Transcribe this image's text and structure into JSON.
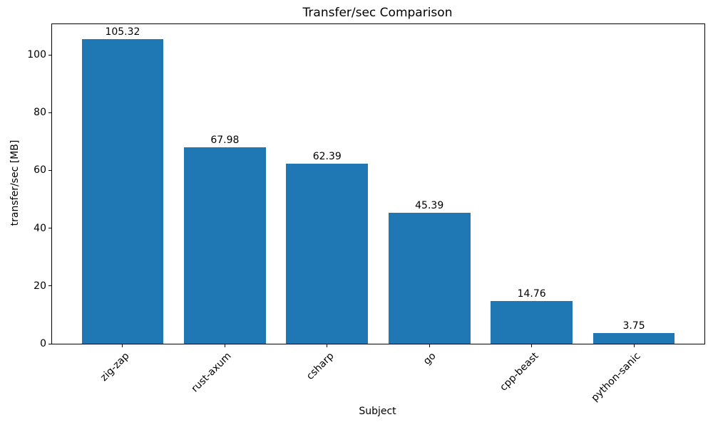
{
  "chart_data": {
    "type": "bar",
    "title": "Transfer/sec Comparison",
    "xlabel": "Subject",
    "ylabel": "transfer/sec [MB]",
    "categories": [
      "zig-zap",
      "rust-axum",
      "csharp",
      "go",
      "cpp-beast",
      "python-sanic"
    ],
    "values": [
      105.32,
      67.98,
      62.39,
      45.39,
      14.76,
      3.75
    ],
    "bar_labels": [
      "105.32",
      "67.98",
      "62.39",
      "45.39",
      "14.76",
      "3.75"
    ],
    "yticks": [
      0,
      20,
      40,
      60,
      80,
      100
    ],
    "ylim": [
      0,
      110.6
    ],
    "bar_color": "#1f77b4",
    "text_color": "#000000",
    "grid": false,
    "legend_position": "none",
    "x_tick_rotation_deg": 45
  }
}
